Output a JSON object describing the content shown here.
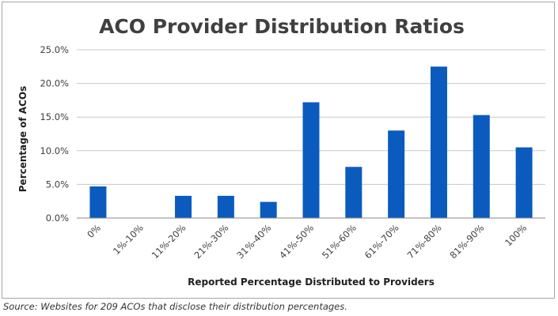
{
  "chart_data": {
    "type": "bar",
    "title": "ACO Provider Distribution Ratios",
    "xlabel": "Reported Percentage Distributed  to Providers",
    "ylabel": "Percentage  of  ACOs",
    "categories": [
      "0%",
      "1%-10%",
      "11%-20%",
      "21%-30%",
      "31%-40%",
      "41%-50%",
      "51%-60%",
      "61%-70%",
      "71%-80%",
      "81%-90%",
      "100%"
    ],
    "values": [
      4.7,
      0.0,
      3.3,
      3.3,
      2.4,
      17.2,
      7.6,
      13.0,
      22.5,
      15.3,
      10.5
    ],
    "ylim": [
      0,
      25
    ],
    "yticks": [
      "0.0%",
      "5.0%",
      "10.0%",
      "15.0%",
      "20.0%",
      "25.0%"
    ],
    "grid": true,
    "bar_color": "#0a5bbd"
  },
  "source_note": "Source: Websites for 209 ACOs that disclose their distribution percentages."
}
